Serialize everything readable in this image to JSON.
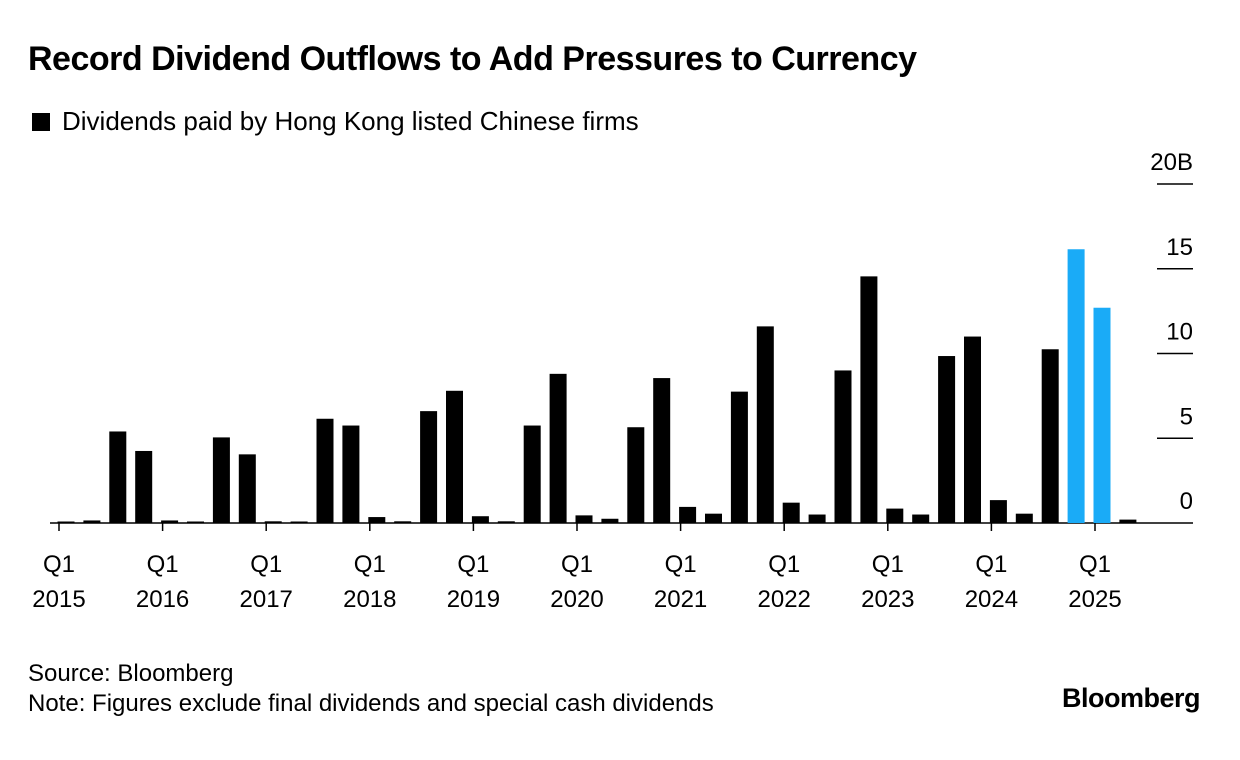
{
  "title": "Record Dividend Outflows to Add Pressures to Currency",
  "legend": {
    "label": "Dividends paid by Hong Kong listed Chinese firms",
    "color": "#000000"
  },
  "footer": {
    "source": "Source: Bloomberg",
    "note": "Note: Figures exclude final dividends and special cash dividends",
    "brand": "Bloomberg"
  },
  "chart_data": {
    "type": "bar",
    "title": "Record Dividend Outflows to Add Pressures to Currency",
    "ylim": [
      0,
      20
    ],
    "yticks": [
      {
        "value": 0,
        "label": "0"
      },
      {
        "value": 5,
        "label": "5"
      },
      {
        "value": 10,
        "label": "10"
      },
      {
        "value": 15,
        "label": "15"
      },
      {
        "value": 20,
        "label": "20B"
      }
    ],
    "xlabels": [
      {
        "index": 0,
        "q": "Q1",
        "year": "2015"
      },
      {
        "index": 4,
        "q": "Q1",
        "year": "2016"
      },
      {
        "index": 8,
        "q": "Q1",
        "year": "2017"
      },
      {
        "index": 12,
        "q": "Q1",
        "year": "2018"
      },
      {
        "index": 16,
        "q": "Q1",
        "year": "2019"
      },
      {
        "index": 20,
        "q": "Q1",
        "year": "2020"
      },
      {
        "index": 24,
        "q": "Q1",
        "year": "2021"
      },
      {
        "index": 28,
        "q": "Q1",
        "year": "2022"
      },
      {
        "index": 32,
        "q": "Q1",
        "year": "2023"
      },
      {
        "index": 36,
        "q": "Q1",
        "year": "2024"
      },
      {
        "index": 40,
        "q": "Q1",
        "year": "2025"
      }
    ],
    "categories": [
      "2015Q1",
      "2015Q2",
      "2015Q3",
      "2015Q4",
      "2016Q1",
      "2016Q2",
      "2016Q3",
      "2016Q4",
      "2017Q1",
      "2017Q2",
      "2017Q3",
      "2017Q4",
      "2018Q1",
      "2018Q2",
      "2018Q3",
      "2018Q4",
      "2019Q1",
      "2019Q2",
      "2019Q3",
      "2019Q4",
      "2020Q1",
      "2020Q2",
      "2020Q3",
      "2020Q4",
      "2021Q1",
      "2021Q2",
      "2021Q3",
      "2021Q4",
      "2022Q1",
      "2022Q2",
      "2022Q3",
      "2022Q4",
      "2023Q1",
      "2023Q2",
      "2023Q3",
      "2023Q4",
      "2024Q1",
      "2024Q2",
      "2024Q3",
      "2024Q4",
      "2025Q1",
      "2025Q2"
    ],
    "values": [
      0.05,
      0.15,
      5.4,
      4.25,
      0.15,
      0.05,
      5.05,
      4.05,
      0.1,
      0.05,
      6.15,
      5.75,
      0.35,
      0.1,
      6.6,
      7.8,
      0.4,
      0.1,
      5.75,
      8.8,
      0.45,
      0.25,
      5.65,
      8.55,
      0.95,
      0.55,
      7.75,
      11.6,
      1.2,
      0.5,
      9.0,
      14.55,
      0.85,
      0.5,
      9.85,
      11.0,
      1.35,
      0.55,
      10.25,
      16.15,
      12.7,
      0.2
    ],
    "highlight_indices": [
      39,
      40
    ],
    "colors": {
      "default": "#000000",
      "highlight": "#1aabf7"
    }
  }
}
